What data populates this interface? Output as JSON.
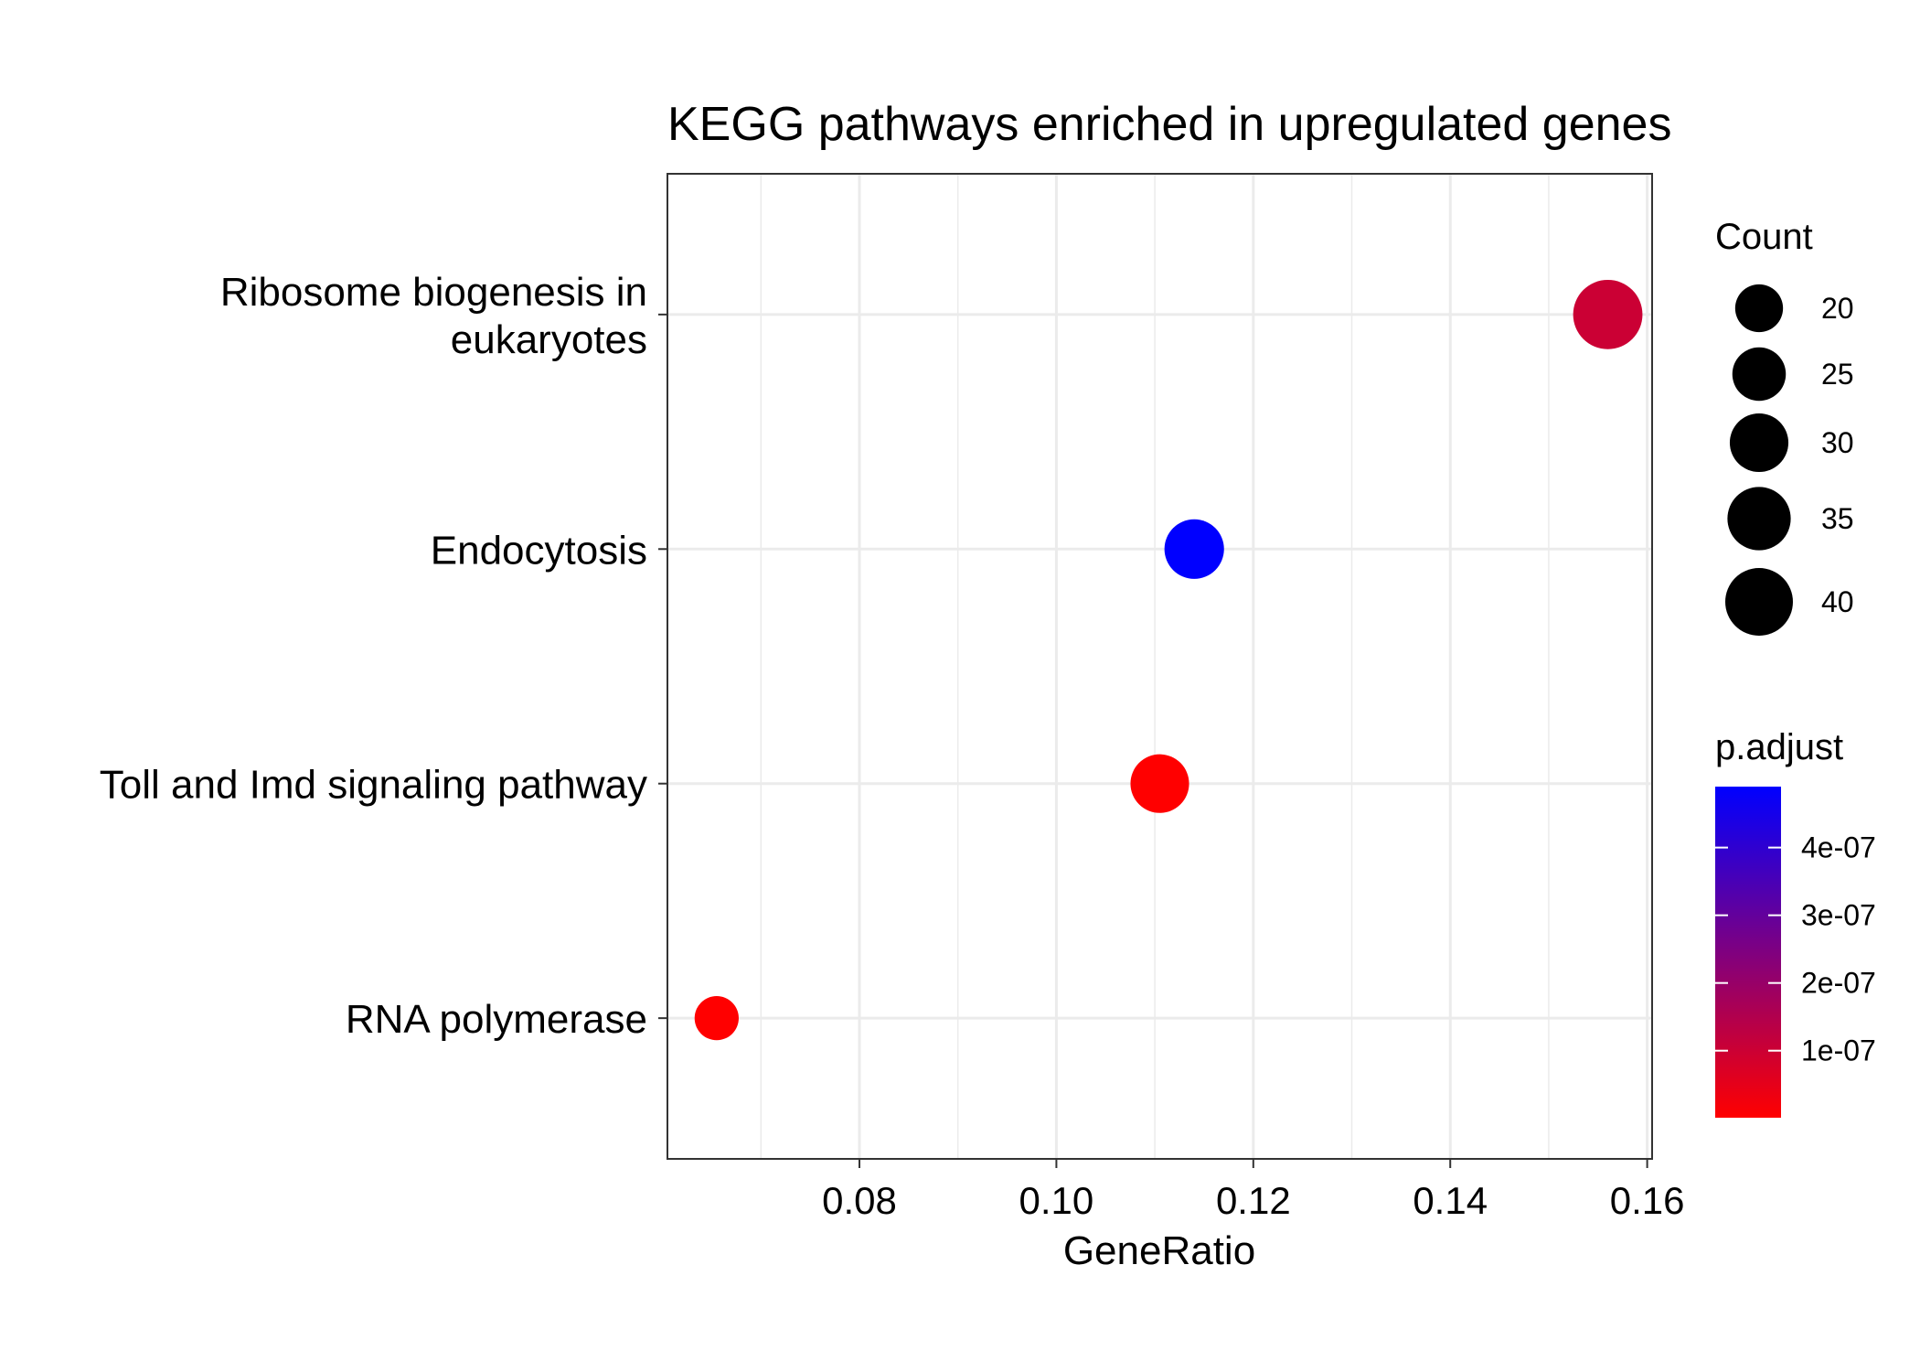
{
  "chart_data": {
    "type": "scatter",
    "title": "KEGG pathways enriched in upregulated genes",
    "xlabel": "GeneRatio",
    "ylabel": "",
    "xlim": [
      0.0605,
      0.1605
    ],
    "x_ticks": [
      "0.08",
      "0.10",
      "0.12",
      "0.14",
      "0.16"
    ],
    "x_tick_values": [
      0.08,
      0.1,
      0.12,
      0.14,
      0.16
    ],
    "grid": true,
    "categories": [
      "Ribosome biogenesis in eukaryotes",
      "Endocytosis",
      "Toll and Imd signaling pathway",
      "RNA polymerase"
    ],
    "category_lines": [
      [
        "Ribosome biogenesis in",
        "eukaryotes"
      ],
      [
        "Endocytosis"
      ],
      [
        "Toll and Imd signaling pathway"
      ],
      [
        "RNA polymerase"
      ]
    ],
    "points": [
      {
        "category": "Ribosome biogenesis in eukaryotes",
        "gene_ratio": 0.156,
        "count": 42,
        "p_adjust": 1e-07
      },
      {
        "category": "Endocytosis",
        "gene_ratio": 0.114,
        "count": 31,
        "p_adjust": 4.9e-07
      },
      {
        "category": "Toll and Imd signaling pathway",
        "gene_ratio": 0.1105,
        "count": 30,
        "p_adjust": 1e-09
      },
      {
        "category": "RNA polymerase",
        "gene_ratio": 0.0655,
        "count": 17,
        "p_adjust": 1e-09
      }
    ],
    "size_legend": {
      "title": "Count",
      "labels": [
        "20",
        "25",
        "30",
        "35",
        "40"
      ],
      "values": [
        20,
        25,
        30,
        35,
        40
      ]
    },
    "color_legend": {
      "title": "p.adjust",
      "labels": [
        "4e-07",
        "3e-07",
        "2e-07",
        "1e-07"
      ],
      "values": [
        4e-07,
        3e-07,
        2e-07,
        1e-07
      ],
      "range": [
        1e-09,
        4.9e-07
      ],
      "low_color": "#ff0000",
      "high_color": "#0000ff"
    },
    "legend_position": "right"
  }
}
